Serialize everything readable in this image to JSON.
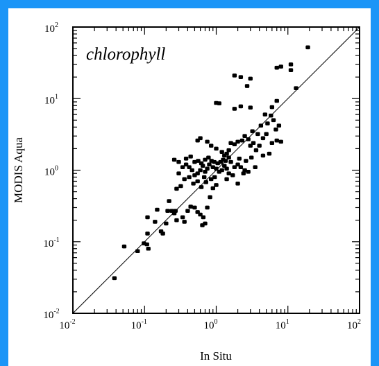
{
  "page": {
    "background": "#1b95f7",
    "panel_background": "#ffffff"
  },
  "chart_data": {
    "type": "scatter",
    "title": "",
    "annotation": "chlorophyll",
    "xlabel": "In Situ",
    "ylabel": "MODIS Aqua",
    "x_scale": "log",
    "y_scale": "log",
    "xlim": [
      0.01,
      100
    ],
    "ylim": [
      0.01,
      100
    ],
    "ticks": [
      {
        "base": "10",
        "exp": "-2",
        "value": 0.01
      },
      {
        "base": "10",
        "exp": "-1",
        "value": 0.1
      },
      {
        "base": "10",
        "exp": "0",
        "value": 1
      },
      {
        "base": "10",
        "exp": "1",
        "value": 10
      },
      {
        "base": "10",
        "exp": "2",
        "value": 100
      }
    ],
    "reference_line": "1:1",
    "grid": false,
    "legend": "none",
    "marker_color": "#000000",
    "series": [
      {
        "points": [
          [
            0.038,
            0.031
          ],
          [
            0.052,
            0.086
          ],
          [
            0.08,
            0.074
          ],
          [
            0.098,
            0.095
          ],
          [
            0.108,
            0.092
          ],
          [
            0.113,
            0.08
          ],
          [
            0.11,
            0.13
          ],
          [
            0.11,
            0.22
          ],
          [
            0.14,
            0.19
          ],
          [
            0.15,
            0.28
          ],
          [
            0.17,
            0.14
          ],
          [
            0.18,
            0.13
          ],
          [
            0.2,
            0.18
          ],
          [
            0.21,
            0.27
          ],
          [
            0.22,
            0.37
          ],
          [
            0.24,
            0.27
          ],
          [
            0.26,
            0.25
          ],
          [
            0.27,
            0.27
          ],
          [
            0.28,
            0.2
          ],
          [
            0.34,
            0.22
          ],
          [
            0.36,
            0.19
          ],
          [
            0.4,
            0.27
          ],
          [
            0.44,
            0.31
          ],
          [
            0.5,
            0.3
          ],
          [
            0.55,
            0.26
          ],
          [
            0.6,
            0.24
          ],
          [
            0.66,
            0.22
          ],
          [
            0.7,
            0.18
          ],
          [
            0.64,
            0.17
          ],
          [
            0.75,
            0.3
          ],
          [
            0.82,
            0.42
          ],
          [
            0.9,
            0.56
          ],
          [
            0.26,
            1.4
          ],
          [
            0.3,
            1.3
          ],
          [
            0.34,
            1.1
          ],
          [
            0.38,
            1.2
          ],
          [
            0.42,
            1.1
          ],
          [
            0.46,
            1.0
          ],
          [
            0.5,
            0.85
          ],
          [
            0.55,
            0.9
          ],
          [
            0.6,
            1.0
          ],
          [
            0.65,
            1.15
          ],
          [
            0.7,
            0.95
          ],
          [
            0.75,
            1.05
          ],
          [
            0.8,
            1.2
          ],
          [
            0.9,
            1.1
          ],
          [
            1.0,
            1.05
          ],
          [
            1.1,
            0.95
          ],
          [
            1.2,
            1.0
          ],
          [
            1.3,
            1.15
          ],
          [
            1.4,
            1.05
          ],
          [
            1.5,
            0.9
          ],
          [
            0.3,
            0.9
          ],
          [
            0.36,
            0.75
          ],
          [
            0.42,
            0.8
          ],
          [
            0.48,
            0.65
          ],
          [
            0.55,
            0.7
          ],
          [
            0.62,
            0.58
          ],
          [
            0.68,
            0.8
          ],
          [
            0.72,
            0.68
          ],
          [
            0.85,
            0.75
          ],
          [
            0.95,
            0.8
          ],
          [
            1.0,
            0.62
          ],
          [
            0.28,
            0.55
          ],
          [
            0.32,
            0.6
          ],
          [
            0.38,
            1.45
          ],
          [
            0.44,
            1.55
          ],
          [
            0.5,
            1.3
          ],
          [
            0.56,
            1.35
          ],
          [
            0.62,
            1.25
          ],
          [
            0.7,
            1.4
          ],
          [
            0.78,
            1.5
          ],
          [
            0.86,
            1.35
          ],
          [
            0.94,
            1.3
          ],
          [
            1.05,
            1.25
          ],
          [
            1.15,
            1.3
          ],
          [
            1.25,
            1.4
          ],
          [
            1.35,
            1.35
          ],
          [
            1.6,
            1.3
          ],
          [
            1.8,
            1.1
          ],
          [
            2.0,
            1.2
          ],
          [
            2.2,
            1.1
          ],
          [
            2.5,
            1.0
          ],
          [
            1.7,
            0.85
          ],
          [
            2.0,
            0.65
          ],
          [
            1.4,
            0.75
          ],
          [
            2.4,
            0.9
          ],
          [
            2.8,
            0.95
          ],
          [
            3.5,
            1.1
          ],
          [
            4.5,
            1.6
          ],
          [
            5.5,
            1.7
          ],
          [
            0.55,
            2.6
          ],
          [
            0.6,
            2.8
          ],
          [
            0.75,
            2.5
          ],
          [
            0.85,
            2.2
          ],
          [
            1.0,
            2.0
          ],
          [
            1.2,
            1.8
          ],
          [
            1.4,
            1.7
          ],
          [
            1.5,
            1.9
          ],
          [
            1.6,
            2.4
          ],
          [
            1.8,
            2.3
          ],
          [
            2.0,
            2.5
          ],
          [
            2.3,
            2.6
          ],
          [
            2.5,
            3.0
          ],
          [
            2.8,
            2.7
          ],
          [
            3.0,
            2.2
          ],
          [
            3.3,
            2.4
          ],
          [
            3.6,
            1.9
          ],
          [
            4.0,
            2.2
          ],
          [
            4.5,
            2.8
          ],
          [
            5.0,
            3.2
          ],
          [
            6.0,
            2.4
          ],
          [
            7.0,
            2.6
          ],
          [
            8.0,
            2.5
          ],
          [
            3.2,
            3.5
          ],
          [
            3.8,
            3.2
          ],
          [
            4.2,
            4.2
          ],
          [
            5.2,
            4.5
          ],
          [
            6.3,
            5.0
          ],
          [
            6.8,
            3.7
          ],
          [
            7.5,
            4.2
          ],
          [
            4.8,
            6.0
          ],
          [
            5.8,
            5.8
          ],
          [
            6.0,
            7.6
          ],
          [
            7.0,
            9.3
          ],
          [
            1.8,
            7.2
          ],
          [
            2.2,
            7.8
          ],
          [
            3.0,
            7.5
          ],
          [
            1.0,
            8.7
          ],
          [
            1.1,
            8.6
          ],
          [
            1.8,
            21.0
          ],
          [
            2.2,
            20.0
          ],
          [
            2.7,
            15.0
          ],
          [
            3.0,
            19.0
          ],
          [
            7.0,
            27.0
          ],
          [
            8.0,
            28.0
          ],
          [
            11.0,
            30.0
          ],
          [
            11.0,
            25.0
          ],
          [
            13.0,
            14.0
          ],
          [
            19.0,
            52.0
          ],
          [
            1.3,
            1.6
          ],
          [
            1.5,
            1.5
          ],
          [
            2.1,
            1.45
          ],
          [
            2.6,
            1.35
          ],
          [
            3.1,
            1.5
          ]
        ]
      }
    ]
  }
}
